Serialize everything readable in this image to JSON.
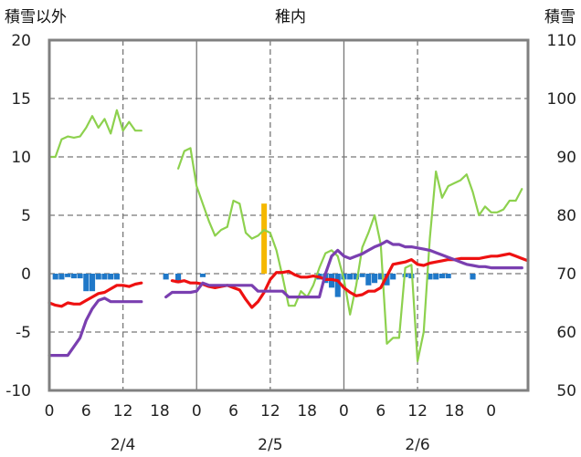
{
  "chart_data": {
    "type": "line",
    "title": "稚内",
    "left_axis_label": "積雪以外",
    "right_axis_label": "積雪",
    "y_left": {
      "ylim": [
        -10,
        20
      ],
      "ticks": [
        "20",
        "15",
        "10",
        "5",
        "0",
        "-5",
        "-10"
      ]
    },
    "y_right": {
      "ylim": [
        50,
        110
      ],
      "ticks": [
        "110",
        "100",
        "90",
        "80",
        "70",
        "60",
        "50"
      ]
    },
    "x_tick_labels": [
      "0",
      "6",
      "12",
      "18",
      "0",
      "6",
      "12",
      "18",
      "0",
      "6",
      "12",
      "18",
      "0"
    ],
    "date_labels": [
      "2/4",
      "2/5",
      "2/6"
    ],
    "grid": {
      "day_lines": "solid",
      "half_day_lines": "dashed"
    },
    "colors": {
      "temperature": "#ee1111",
      "wind": "#7a3fb0",
      "snow_depth": "#8dd14e",
      "snowfall": "#1f78c8",
      "precipitation": "#f5b800",
      "frame": "#808080"
    },
    "series": [
      {
        "key": "snow_depth",
        "axis": "right",
        "segments": [
          [
            [
              0,
              90
            ],
            [
              1,
              90
            ],
            [
              2,
              93
            ],
            [
              3,
              93.5
            ],
            [
              4,
              93.3
            ],
            [
              5,
              93.5
            ],
            [
              6,
              95
            ],
            [
              7,
              97
            ],
            [
              8,
              95
            ],
            [
              9,
              96.5
            ],
            [
              10,
              94
            ],
            [
              11,
              98
            ],
            [
              12,
              94.5
            ],
            [
              13,
              96
            ],
            [
              14,
              94.5
            ],
            [
              15,
              94.5
            ]
          ],
          [
            [
              21,
              88
            ],
            [
              22,
              91
            ],
            [
              23,
              91.5
            ],
            [
              24,
              85
            ],
            [
              25,
              82
            ],
            [
              26,
              79
            ],
            [
              27,
              76.5
            ],
            [
              28,
              77.5
            ],
            [
              29,
              78
            ],
            [
              30,
              82.5
            ],
            [
              31,
              82
            ],
            [
              32,
              77
            ],
            [
              33,
              76
            ],
            [
              34,
              76.5
            ],
            [
              35,
              77.5
            ],
            [
              36,
              77
            ],
            [
              37,
              74
            ],
            [
              38,
              69.5
            ],
            [
              39,
              64.5
            ],
            [
              40,
              64.5
            ],
            [
              41,
              67
            ],
            [
              42,
              66
            ],
            [
              43,
              68
            ],
            [
              44,
              71
            ],
            [
              45,
              73.5
            ],
            [
              46,
              74
            ],
            [
              47,
              73
            ],
            [
              48,
              69
            ],
            [
              49,
              63
            ],
            [
              50,
              68
            ],
            [
              51,
              74.5
            ],
            [
              52,
              77
            ],
            [
              53,
              80
            ],
            [
              54,
              75
            ],
            [
              55,
              58
            ],
            [
              56,
              59
            ],
            [
              57,
              59
            ],
            [
              58,
              71
            ],
            [
              59,
              71.5
            ],
            [
              60,
              55
            ],
            [
              61,
              60
            ],
            [
              62,
              76
            ],
            [
              63,
              87.5
            ],
            [
              64,
              83
            ],
            [
              65,
              85
            ],
            [
              66,
              85.5
            ],
            [
              67,
              86
            ],
            [
              68,
              87
            ],
            [
              69,
              84
            ],
            [
              70,
              80
            ],
            [
              71,
              81.5
            ],
            [
              72,
              80.5
            ],
            [
              73,
              80.5
            ],
            [
              74,
              81
            ],
            [
              75,
              82.5
            ],
            [
              76,
              82.5
            ],
            [
              77,
              84.5
            ]
          ]
        ]
      },
      {
        "key": "temperature",
        "axis": "left",
        "segments": [
          [
            [
              0,
              -2.5
            ],
            [
              1,
              -2.7
            ],
            [
              2,
              -2.8
            ],
            [
              3,
              -2.5
            ],
            [
              4,
              -2.6
            ],
            [
              5,
              -2.6
            ],
            [
              6,
              -2.3
            ],
            [
              7,
              -2.0
            ],
            [
              8,
              -1.7
            ],
            [
              9,
              -1.6
            ],
            [
              10,
              -1.3
            ],
            [
              11,
              -1.0
            ],
            [
              12,
              -1.0
            ],
            [
              13,
              -1.1
            ],
            [
              14,
              -0.9
            ],
            [
              15,
              -0.8
            ]
          ],
          [
            [
              20,
              -0.6
            ],
            [
              21,
              -0.7
            ],
            [
              22,
              -0.6
            ],
            [
              23,
              -0.8
            ],
            [
              24,
              -0.8
            ],
            [
              25,
              -0.9
            ],
            [
              26,
              -1.1
            ],
            [
              27,
              -1.2
            ],
            [
              28,
              -1.1
            ],
            [
              29,
              -1.0
            ],
            [
              30,
              -1.2
            ],
            [
              31,
              -1.4
            ],
            [
              32,
              -2.2
            ],
            [
              33,
              -2.9
            ],
            [
              34,
              -2.4
            ],
            [
              35,
              -1.6
            ],
            [
              36,
              -0.5
            ],
            [
              37,
              0.1
            ],
            [
              38,
              0.1
            ],
            [
              39,
              0.2
            ],
            [
              40,
              -0.1
            ],
            [
              41,
              -0.3
            ],
            [
              42,
              -0.3
            ],
            [
              43,
              -0.2
            ],
            [
              44,
              -0.3
            ],
            [
              45,
              -0.5
            ],
            [
              46,
              -0.5
            ],
            [
              47,
              -0.6
            ],
            [
              48,
              -1.2
            ],
            [
              49,
              -1.6
            ],
            [
              50,
              -1.9
            ],
            [
              51,
              -1.8
            ],
            [
              52,
              -1.5
            ],
            [
              53,
              -1.5
            ],
            [
              54,
              -1.2
            ],
            [
              55,
              -0.2
            ],
            [
              56,
              0.8
            ],
            [
              57,
              0.9
            ],
            [
              58,
              1.0
            ],
            [
              59,
              1.2
            ],
            [
              60,
              0.8
            ],
            [
              61,
              0.7
            ],
            [
              62,
              0.9
            ],
            [
              63,
              1.0
            ],
            [
              64,
              1.1
            ],
            [
              65,
              1.2
            ],
            [
              66,
              1.2
            ],
            [
              67,
              1.3
            ],
            [
              68,
              1.3
            ],
            [
              69,
              1.3
            ],
            [
              70,
              1.3
            ],
            [
              71,
              1.4
            ],
            [
              72,
              1.5
            ],
            [
              73,
              1.5
            ],
            [
              74,
              1.6
            ],
            [
              75,
              1.7
            ],
            [
              76,
              1.5
            ],
            [
              77,
              1.3
            ],
            [
              78,
              1.1
            ]
          ]
        ]
      },
      {
        "key": "wind",
        "axis": "left",
        "segments": [
          [
            [
              0,
              -7
            ],
            [
              3,
              -7
            ],
            [
              5,
              -5.5
            ],
            [
              6,
              -4
            ],
            [
              7,
              -3
            ],
            [
              8,
              -2.3
            ],
            [
              9,
              -2.1
            ],
            [
              10,
              -2.4
            ],
            [
              12,
              -2.4
            ],
            [
              15,
              -2.4
            ]
          ],
          [
            [
              19,
              -2
            ],
            [
              20,
              -1.6
            ],
            [
              23,
              -1.6
            ],
            [
              24,
              -1.5
            ],
            [
              25,
              -0.8
            ],
            [
              26,
              -1
            ],
            [
              33,
              -1
            ],
            [
              34,
              -1.5
            ],
            [
              38,
              -1.5
            ],
            [
              39,
              -2
            ],
            [
              44,
              -2
            ],
            [
              45,
              0
            ],
            [
              46,
              1.5
            ],
            [
              47,
              2
            ],
            [
              48,
              1.5
            ],
            [
              49,
              1.3
            ],
            [
              50,
              1.5
            ],
            [
              51,
              1.7
            ],
            [
              52,
              2
            ],
            [
              53,
              2.3
            ],
            [
              54,
              2.5
            ],
            [
              55,
              2.8
            ],
            [
              56,
              2.5
            ],
            [
              57,
              2.5
            ],
            [
              58,
              2.3
            ],
            [
              59,
              2.3
            ],
            [
              60,
              2.2
            ],
            [
              61,
              2.1
            ],
            [
              62,
              2
            ],
            [
              63,
              1.8
            ],
            [
              64,
              1.6
            ],
            [
              65,
              1.4
            ],
            [
              66,
              1.2
            ],
            [
              67,
              1
            ],
            [
              68,
              0.8
            ],
            [
              69,
              0.7
            ],
            [
              70,
              0.6
            ],
            [
              71,
              0.6
            ],
            [
              72,
              0.5
            ],
            [
              73,
              0.5
            ],
            [
              74,
              0.5
            ],
            [
              75,
              0.5
            ],
            [
              76,
              0.5
            ],
            [
              77,
              0.5
            ]
          ]
        ]
      }
    ],
    "bars": [
      {
        "key": "precipitation",
        "axis": "left",
        "points": [
          [
            35,
            6
          ]
        ]
      },
      {
        "key": "snowfall",
        "axis": "left",
        "points": [
          [
            1,
            -0.5
          ],
          [
            2,
            -0.5
          ],
          [
            3,
            -0.3
          ],
          [
            4,
            -0.4
          ],
          [
            5,
            -0.4
          ],
          [
            6,
            -1.5
          ],
          [
            7,
            -1.5
          ],
          [
            8,
            -0.5
          ],
          [
            9,
            -0.5
          ],
          [
            10,
            -0.5
          ],
          [
            11,
            -0.5
          ],
          [
            19,
            -0.5
          ],
          [
            21,
            -0.8
          ],
          [
            25,
            -0.3
          ],
          [
            44,
            -0.5
          ],
          [
            45,
            -0.8
          ],
          [
            46,
            -1.2
          ],
          [
            47,
            -2.0
          ],
          [
            48,
            -0.5
          ],
          [
            49,
            -0.5
          ],
          [
            50,
            -0.5
          ],
          [
            51,
            -0.3
          ],
          [
            52,
            -1.0
          ],
          [
            53,
            -0.8
          ],
          [
            54,
            -0.5
          ],
          [
            55,
            -1.0
          ],
          [
            56,
            -0.5
          ],
          [
            58,
            -0.3
          ],
          [
            59,
            -0.4
          ],
          [
            62,
            -0.5
          ],
          [
            63,
            -0.5
          ],
          [
            64,
            -0.4
          ],
          [
            65,
            -0.4
          ],
          [
            69,
            -0.5
          ]
        ]
      }
    ]
  }
}
